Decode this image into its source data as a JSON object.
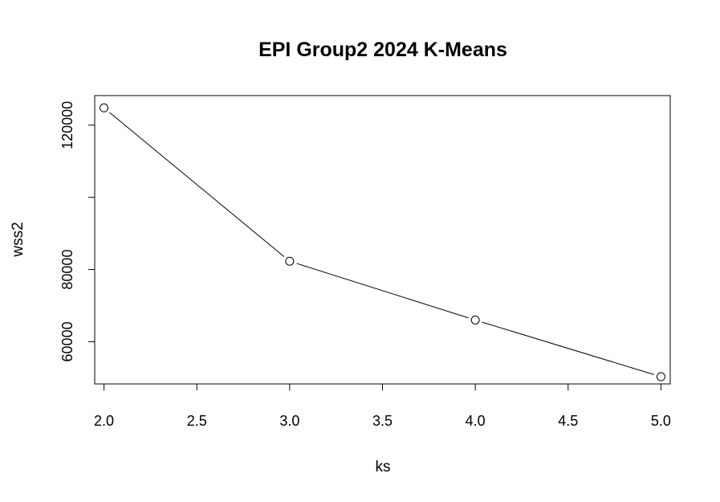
{
  "chart_data": {
    "type": "line",
    "title": "EPI Group2 2024 K-Means",
    "xlabel": "ks",
    "ylabel": "wss2",
    "x": [
      2,
      3,
      4,
      5
    ],
    "series": [
      {
        "values": [
          124800,
          82300,
          66000,
          50300
        ]
      }
    ],
    "xlim": [
      1.95,
      5.05
    ],
    "ylim": [
      48300,
      128200
    ],
    "x_ticks": [
      "2.0",
      "2.5",
      "3.0",
      "3.5",
      "4.0",
      "4.5",
      "5.0"
    ],
    "y_ticks": [
      "60000",
      "80000",
      "100000",
      "120000"
    ],
    "y_tick_labels_shown": [
      "60000",
      "80000",
      "120000"
    ],
    "marker": "open-circle",
    "grid": false,
    "legend": "none",
    "colors": {
      "line": "#000000",
      "marker_fill": "#ffffff",
      "frame": "#000000"
    }
  }
}
